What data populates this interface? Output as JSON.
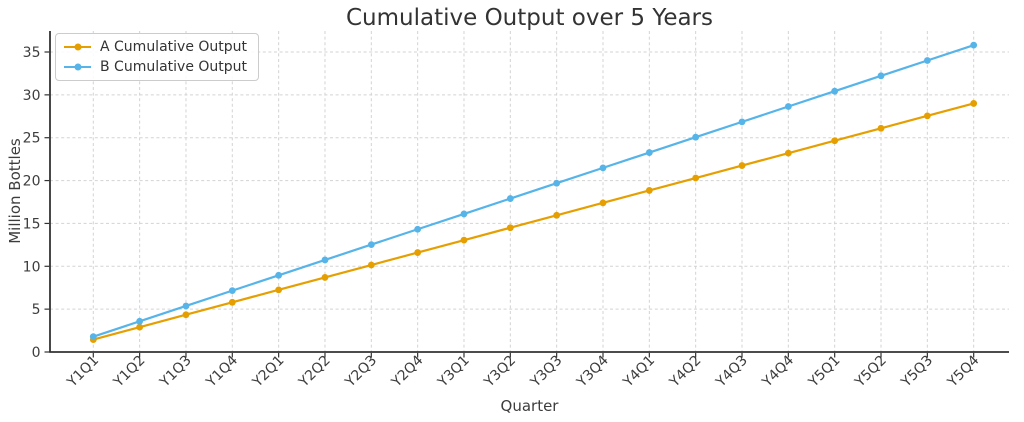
{
  "figure": {
    "background": "#ffffff"
  },
  "chart_data": {
    "type": "line",
    "title": "Cumulative Output over 5 Years",
    "xlabel": "Quarter",
    "ylabel": "Million Bottles",
    "categories": [
      "Y1Q1",
      "Y1Q2",
      "Y1Q3",
      "Y1Q4",
      "Y2Q1",
      "Y2Q2",
      "Y2Q3",
      "Y2Q4",
      "Y3Q1",
      "Y3Q2",
      "Y3Q3",
      "Y3Q4",
      "Y4Q1",
      "Y4Q2",
      "Y4Q3",
      "Y4Q4",
      "Y5Q1",
      "Y5Q2",
      "Y5Q3",
      "Y5Q4"
    ],
    "yticks": [
      0,
      5,
      10,
      15,
      20,
      25,
      30,
      35
    ],
    "ylim": [
      0,
      37.5
    ],
    "grid": true,
    "grid_style": "dashed",
    "legend_position": "upper-left",
    "series": [
      {
        "name": "A Cumulative Output",
        "color": "#E69F00",
        "values": [
          1.45,
          2.9,
          4.35,
          5.8,
          7.25,
          8.7,
          10.15,
          11.6,
          13.05,
          14.5,
          15.95,
          17.4,
          18.85,
          20.3,
          21.75,
          23.2,
          24.65,
          26.1,
          27.55,
          29.0
        ]
      },
      {
        "name": "B Cumulative Output",
        "color": "#56B4E9",
        "values": [
          1.79,
          3.58,
          5.37,
          7.16,
          8.95,
          10.74,
          12.53,
          14.32,
          16.11,
          17.9,
          19.69,
          21.48,
          23.27,
          25.06,
          26.85,
          28.64,
          30.43,
          32.22,
          34.01,
          35.8
        ]
      }
    ]
  },
  "colors": {
    "grid": "#d3d3d3",
    "spine": "#333333",
    "text": "#3d3d3d",
    "title": "#333333",
    "legend_border": "#cccccc"
  }
}
